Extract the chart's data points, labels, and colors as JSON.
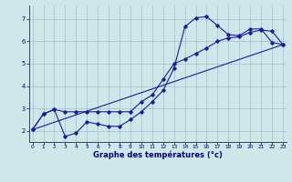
{
  "xlabel": "Graphe des températures (°c)",
  "bg_color": "#cce8e8",
  "grid_color": "#aabbcc",
  "line_color": "#1a1aaa",
  "x_ticks": [
    0,
    1,
    2,
    3,
    4,
    5,
    6,
    7,
    8,
    9,
    10,
    11,
    12,
    13,
    14,
    15,
    16,
    17,
    18,
    19,
    20,
    21,
    22,
    23
  ],
  "y_ticks": [
    2,
    3,
    4,
    5,
    6,
    7
  ],
  "ylim": [
    1.5,
    7.6
  ],
  "xlim": [
    -0.3,
    23.3
  ],
  "line1_x": [
    0,
    1,
    2,
    3,
    4,
    5,
    6,
    7,
    8,
    9,
    10,
    11,
    12,
    13,
    14,
    15,
    16,
    17,
    18,
    19,
    20,
    21,
    22,
    23
  ],
  "line1_y": [
    2.05,
    2.75,
    2.95,
    1.75,
    1.9,
    2.4,
    2.3,
    2.2,
    2.2,
    2.5,
    2.85,
    3.3,
    3.8,
    4.8,
    6.65,
    7.05,
    7.1,
    6.7,
    6.3,
    6.25,
    6.55,
    6.55,
    5.95,
    5.85
  ],
  "line2_x": [
    0,
    1,
    2,
    3,
    4,
    5,
    6,
    7,
    8,
    9,
    10,
    11,
    12,
    13,
    14,
    15,
    16,
    17,
    18,
    19,
    20,
    21,
    22,
    23
  ],
  "line2_y": [
    2.05,
    2.75,
    2.95,
    2.85,
    2.85,
    2.85,
    2.85,
    2.85,
    2.85,
    2.85,
    3.3,
    3.6,
    4.3,
    5.0,
    5.2,
    5.45,
    5.7,
    6.0,
    6.15,
    6.2,
    6.4,
    6.5,
    6.45,
    5.85
  ],
  "line3_x": [
    0,
    23
  ],
  "line3_y": [
    2.05,
    5.85
  ]
}
